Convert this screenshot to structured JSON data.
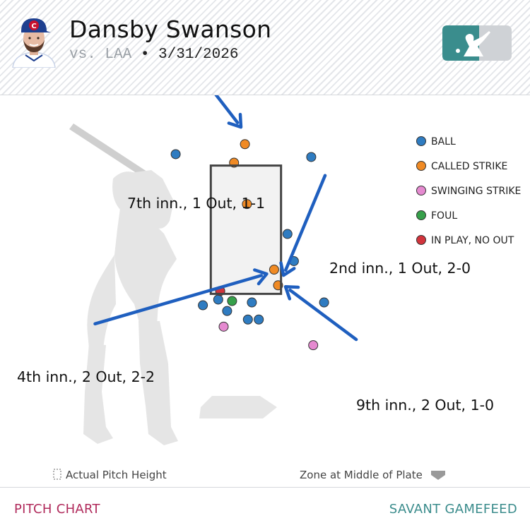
{
  "header": {
    "player_name": "Dansby Swanson",
    "vs_label": "vs. LAA",
    "separator": "•",
    "date": "3/31/2026"
  },
  "footer": {
    "left_link": "PITCH CHART",
    "right_link": "SAVANT GAMEFEED"
  },
  "colors": {
    "ball": "#2f7cc1",
    "called_strike": "#f08a24",
    "swinging_strike": "#e58ad0",
    "foul": "#36a04a",
    "in_play_no_out": "#d2343c",
    "arrow": "#1f5fbf"
  },
  "chart_data": {
    "type": "scatter",
    "title": "",
    "xlabel": "",
    "ylabel": "",
    "x_range": [
      -2.5,
      3.0
    ],
    "y_range": [
      0.0,
      4.5
    ],
    "legend_position": "top-right",
    "legend": [
      {
        "key": "ball",
        "label": "BALL"
      },
      {
        "key": "called_strike",
        "label": "CALLED STRIKE"
      },
      {
        "key": "swinging_strike",
        "label": "SWINGING STRIKE"
      },
      {
        "key": "foul",
        "label": "FOUL"
      },
      {
        "key": "in_play_no_out",
        "label": "IN PLAY, NO OUT"
      }
    ],
    "strike_zone": {
      "left": -0.71,
      "right": 0.71,
      "bottom": 1.6,
      "top": 3.4
    },
    "series": [
      {
        "name": "BALL",
        "key": "ball",
        "points": [
          {
            "x": -1.42,
            "y": 3.56
          },
          {
            "x": 1.32,
            "y": 3.52
          },
          {
            "x": 0.84,
            "y": 2.44
          },
          {
            "x": -0.87,
            "y": 1.44
          },
          {
            "x": -0.56,
            "y": 1.52
          },
          {
            "x": -0.38,
            "y": 1.36
          },
          {
            "x": 0.12,
            "y": 1.48
          },
          {
            "x": 0.04,
            "y": 1.24
          },
          {
            "x": 0.26,
            "y": 1.24
          },
          {
            "x": 0.97,
            "y": 2.06
          },
          {
            "x": 1.58,
            "y": 1.48
          }
        ]
      },
      {
        "name": "CALLED STRIKE",
        "key": "called_strike",
        "points": [
          {
            "x": -0.24,
            "y": 3.44
          },
          {
            "x": -0.02,
            "y": 3.7
          },
          {
            "x": 0.02,
            "y": 2.86
          },
          {
            "x": 0.57,
            "y": 1.94
          },
          {
            "x": 0.65,
            "y": 1.72
          }
        ]
      },
      {
        "name": "SWINGING STRIKE",
        "key": "swinging_strike",
        "points": [
          {
            "x": -0.45,
            "y": 1.14
          },
          {
            "x": 1.36,
            "y": 0.88
          }
        ]
      },
      {
        "name": "FOUL",
        "key": "foul",
        "points": [
          {
            "x": -0.28,
            "y": 1.5
          }
        ]
      },
      {
        "name": "IN PLAY, NO OUT",
        "key": "in_play_no_out",
        "points": [
          {
            "x": -0.52,
            "y": 1.64
          }
        ]
      }
    ],
    "annotations": [
      {
        "text": "7th inn., 1 Out, 1-1",
        "from": {
          "x": -0.88,
          "y": 4.64
        },
        "to": {
          "x": -0.1,
          "y": 3.94
        }
      },
      {
        "text": "2nd inn., 1 Out, 2-0",
        "from": {
          "x": 1.6,
          "y": 3.26
        },
        "to": {
          "x": 0.76,
          "y": 1.86
        }
      },
      {
        "text": "4th inn., 2 Out, 2-2",
        "from": {
          "x": -3.05,
          "y": 1.18
        },
        "to": {
          "x": 0.42,
          "y": 1.88
        }
      },
      {
        "text": "9th inn., 2 Out, 1-0",
        "from": {
          "x": 2.23,
          "y": 0.96
        },
        "to": {
          "x": 0.8,
          "y": 1.7
        }
      }
    ],
    "notes": {
      "left": "Actual Pitch Height",
      "right": "Zone at Middle of Plate"
    }
  }
}
